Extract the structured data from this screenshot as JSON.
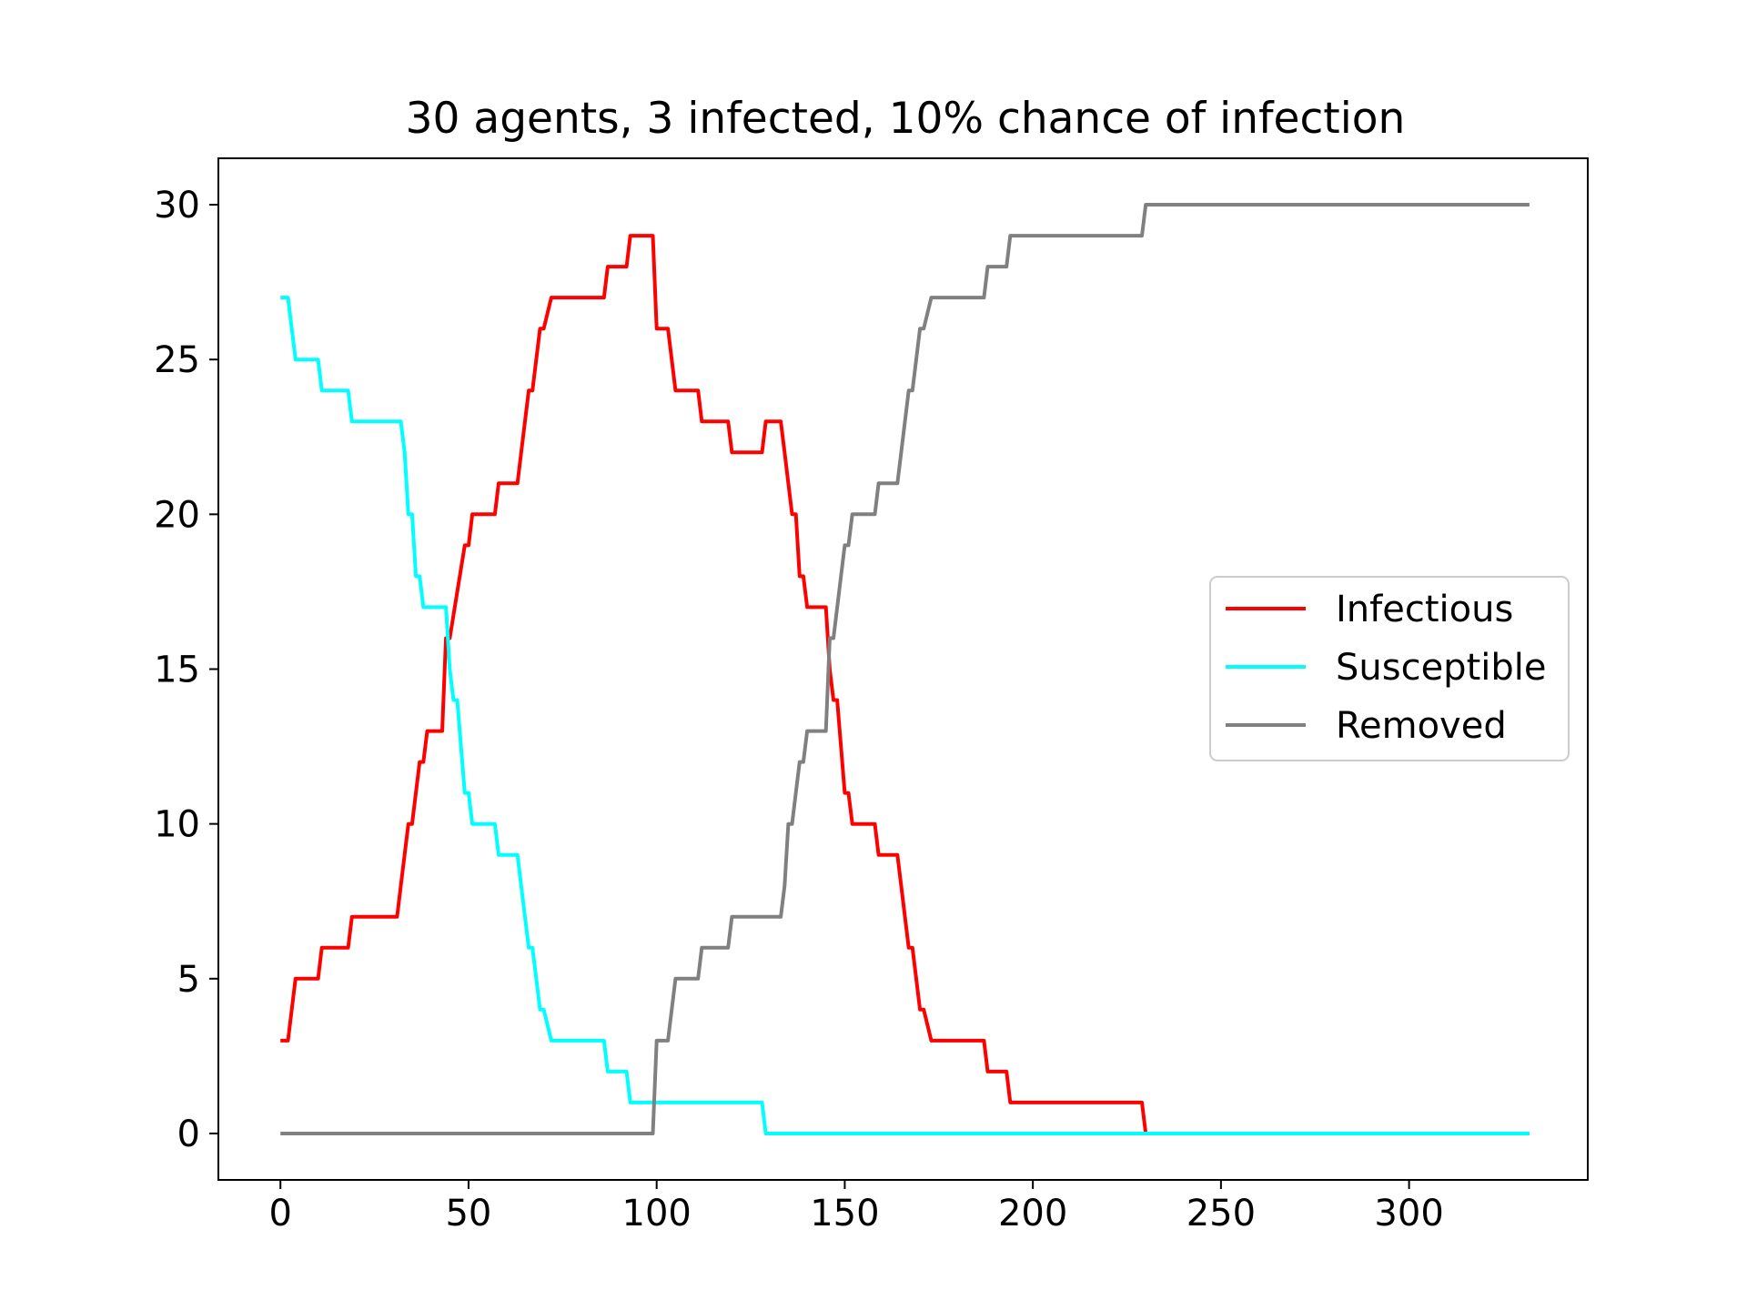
{
  "chart_data": {
    "type": "line",
    "title": "30 agents, 3 infected, 10% chance of infection",
    "xlabel": "",
    "ylabel": "",
    "xlim": [
      -16.5,
      347.5
    ],
    "ylim": [
      -1.5,
      31.5
    ],
    "xticks": [
      0,
      50,
      100,
      150,
      200,
      250,
      300
    ],
    "yticks": [
      0,
      5,
      10,
      15,
      20,
      25,
      30
    ],
    "grid": false,
    "legend_position": "center-right",
    "series": [
      {
        "name": "Infectious",
        "color": "#ff0000",
        "points": [
          [
            0,
            3
          ],
          [
            2,
            3
          ],
          [
            4,
            5
          ],
          [
            10,
            5
          ],
          [
            11,
            6
          ],
          [
            18,
            6
          ],
          [
            19,
            7
          ],
          [
            31,
            7
          ],
          [
            32,
            8
          ],
          [
            34,
            10
          ],
          [
            35,
            10
          ],
          [
            37,
            12
          ],
          [
            38,
            12
          ],
          [
            39,
            13
          ],
          [
            43,
            13
          ],
          [
            44,
            16
          ],
          [
            45,
            16
          ],
          [
            49,
            19
          ],
          [
            50,
            19
          ],
          [
            51,
            20
          ],
          [
            57,
            20
          ],
          [
            58,
            21
          ],
          [
            63,
            21
          ],
          [
            66,
            24
          ],
          [
            67,
            24
          ],
          [
            69,
            26
          ],
          [
            70,
            26
          ],
          [
            72,
            27
          ],
          [
            86,
            27
          ],
          [
            87,
            28
          ],
          [
            92,
            28
          ],
          [
            93,
            29
          ],
          [
            99,
            29
          ],
          [
            100,
            26
          ],
          [
            103,
            26
          ],
          [
            105,
            24
          ],
          [
            111,
            24
          ],
          [
            112,
            23
          ],
          [
            119,
            23
          ],
          [
            120,
            22
          ],
          [
            128,
            22
          ],
          [
            129,
            23
          ],
          [
            133,
            23
          ],
          [
            134,
            22
          ],
          [
            136,
            20
          ],
          [
            137,
            20
          ],
          [
            138,
            18
          ],
          [
            139,
            18
          ],
          [
            140,
            17
          ],
          [
            145,
            17
          ],
          [
            146,
            15
          ],
          [
            147,
            14
          ],
          [
            148,
            14
          ],
          [
            150,
            11
          ],
          [
            151,
            11
          ],
          [
            152,
            10
          ],
          [
            158,
            10
          ],
          [
            159,
            9
          ],
          [
            164,
            9
          ],
          [
            167,
            6
          ],
          [
            168,
            6
          ],
          [
            170,
            4
          ],
          [
            171,
            4
          ],
          [
            173,
            3
          ],
          [
            187,
            3
          ],
          [
            188,
            2
          ],
          [
            193,
            2
          ],
          [
            194,
            1
          ],
          [
            229,
            1
          ],
          [
            230,
            0
          ],
          [
            332,
            0
          ]
        ]
      },
      {
        "name": "Susceptible",
        "color": "#00ffff",
        "points": [
          [
            0,
            27
          ],
          [
            2,
            27
          ],
          [
            4,
            25
          ],
          [
            10,
            25
          ],
          [
            11,
            24
          ],
          [
            18,
            24
          ],
          [
            19,
            23
          ],
          [
            32,
            23
          ],
          [
            33,
            22
          ],
          [
            34,
            20
          ],
          [
            35,
            20
          ],
          [
            36,
            18
          ],
          [
            37,
            18
          ],
          [
            38,
            17
          ],
          [
            44,
            17
          ],
          [
            45,
            15
          ],
          [
            46,
            14
          ],
          [
            47,
            14
          ],
          [
            49,
            11
          ],
          [
            50,
            11
          ],
          [
            51,
            10
          ],
          [
            57,
            10
          ],
          [
            58,
            9
          ],
          [
            63,
            9
          ],
          [
            66,
            6
          ],
          [
            67,
            6
          ],
          [
            69,
            4
          ],
          [
            70,
            4
          ],
          [
            72,
            3
          ],
          [
            86,
            3
          ],
          [
            87,
            2
          ],
          [
            92,
            2
          ],
          [
            93,
            1
          ],
          [
            128,
            1
          ],
          [
            129,
            0
          ],
          [
            332,
            0
          ]
        ]
      },
      {
        "name": "Removed",
        "color": "#808080",
        "points": [
          [
            0,
            0
          ],
          [
            99,
            0
          ],
          [
            100,
            3
          ],
          [
            103,
            3
          ],
          [
            105,
            5
          ],
          [
            111,
            5
          ],
          [
            112,
            6
          ],
          [
            119,
            6
          ],
          [
            120,
            7
          ],
          [
            133,
            7
          ],
          [
            134,
            8
          ],
          [
            135,
            10
          ],
          [
            136,
            10
          ],
          [
            138,
            12
          ],
          [
            139,
            12
          ],
          [
            140,
            13
          ],
          [
            145,
            13
          ],
          [
            146,
            16
          ],
          [
            147,
            16
          ],
          [
            150,
            19
          ],
          [
            151,
            19
          ],
          [
            152,
            20
          ],
          [
            158,
            20
          ],
          [
            159,
            21
          ],
          [
            164,
            21
          ],
          [
            167,
            24
          ],
          [
            168,
            24
          ],
          [
            170,
            26
          ],
          [
            171,
            26
          ],
          [
            173,
            27
          ],
          [
            187,
            27
          ],
          [
            188,
            28
          ],
          [
            193,
            28
          ],
          [
            194,
            29
          ],
          [
            229,
            29
          ],
          [
            230,
            30
          ],
          [
            332,
            30
          ]
        ]
      }
    ]
  }
}
